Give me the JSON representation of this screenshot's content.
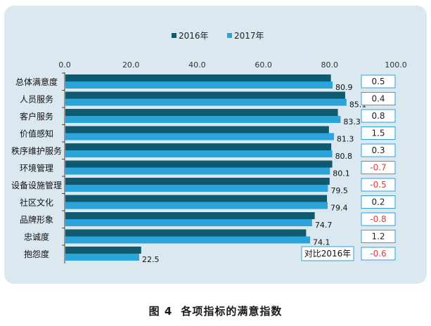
{
  "colors": {
    "background_panel": "#dbe8ef",
    "series_2016": "#0f5a6e",
    "series_2017": "#2aa4db",
    "negative_change": "#e03a3a",
    "positive_change": "#222222"
  },
  "caption": {
    "figure_no": "图 4",
    "title": "各项指标的满意指数"
  },
  "comparison_label": "对比2016年",
  "chart_data": {
    "type": "bar",
    "orientation": "horizontal",
    "xlim": [
      0,
      100
    ],
    "x_ticks": [
      "0.0",
      "20.0",
      "40.0",
      "60.0",
      "80.0",
      "100.0"
    ],
    "grid": false,
    "legend_position": "top",
    "categories": [
      "总体满意度",
      "人员服务",
      "客户服务",
      "价值感知",
      "秩序维护服务",
      "环境管理",
      "设备设施管理",
      "社区文化",
      "品牌形象",
      "忠诚度",
      "抱怨度"
    ],
    "series": [
      {
        "name": "2016年",
        "values": [
          80.4,
          84.7,
          82.5,
          79.8,
          80.5,
          80.8,
          80.0,
          79.2,
          75.5,
          72.9,
          23.1
        ]
      },
      {
        "name": "2017年",
        "values": [
          80.9,
          85.1,
          83.3,
          81.3,
          80.8,
          80.1,
          79.5,
          79.4,
          74.7,
          74.1,
          22.5
        ]
      }
    ],
    "value_labels": [
      "80.9",
      "85.1",
      "83.3",
      "81.3",
      "80.8",
      "80.1",
      "79.5",
      "79.4",
      "74.7",
      "74.1",
      "22.5"
    ],
    "change_vs_2016": [
      "0.5",
      "0.4",
      "0.8",
      "1.5",
      "0.3",
      "-0.7",
      "-0.5",
      "0.2",
      "-0.8",
      "1.2",
      "-0.6"
    ]
  }
}
